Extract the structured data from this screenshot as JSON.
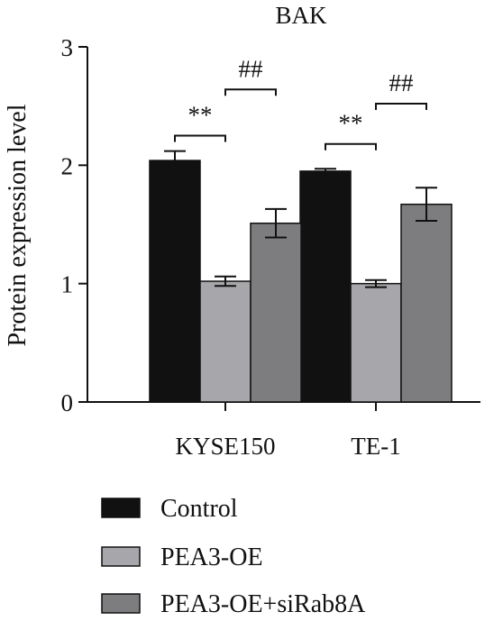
{
  "chart_data": {
    "type": "bar",
    "title": "BAK",
    "ylabel": "Protein expression level",
    "xlabel": "",
    "ylim": [
      0,
      3
    ],
    "yticks": [
      0,
      1,
      2,
      3
    ],
    "grid": false,
    "legend_position": "bottom-left",
    "categories": [
      "KYSE150",
      "TE-1"
    ],
    "series": [
      {
        "name": "Control",
        "color": "#111111",
        "values": [
          2.04,
          1.95
        ],
        "errors": [
          0.08,
          0.02
        ]
      },
      {
        "name": "PEA3-OE",
        "color": "#a7a6aa",
        "values": [
          1.02,
          1.0
        ],
        "errors": [
          0.04,
          0.03
        ]
      },
      {
        "name": "PEA3-OE+siRab8A",
        "color": "#7d7c7e",
        "values": [
          1.51,
          1.67
        ],
        "errors": [
          0.12,
          0.14
        ]
      }
    ],
    "annotations": [
      {
        "category": 0,
        "from_series": 0,
        "to_series": 1,
        "level": 2.25,
        "text": "**"
      },
      {
        "category": 0,
        "from_series": 1,
        "to_series": 2,
        "level": 2.64,
        "text": "##"
      },
      {
        "category": 1,
        "from_series": 0,
        "to_series": 1,
        "level": 2.18,
        "text": "**"
      },
      {
        "category": 1,
        "from_series": 1,
        "to_series": 2,
        "level": 2.52,
        "text": "##"
      }
    ]
  }
}
